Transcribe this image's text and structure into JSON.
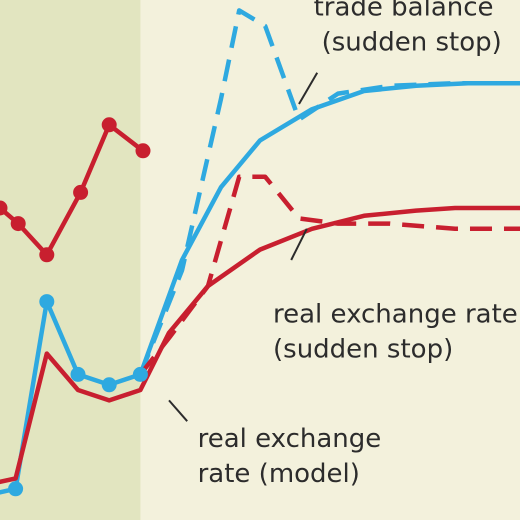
{
  "chart_data": {
    "type": "line",
    "title": "",
    "xlabel": "",
    "ylabel": "",
    "grid": false,
    "legend": "none",
    "xlim": [
      0,
      20
    ],
    "ylim": [
      0,
      100
    ],
    "shaded_region": {
      "x_from": 0,
      "x_to": 5.4,
      "color": "#e2e5c0"
    },
    "colors": {
      "blue": "#2ea9e0",
      "red": "#c81f2f",
      "background": "#f3f1dc",
      "annotation_text": "#2c2c2c",
      "leader_line": "#2c2c2c"
    },
    "series": [
      {
        "color": "#c81f2f",
        "style": "solid",
        "markers": true,
        "points": [
          [
            0,
            60
          ],
          [
            0.7,
            57
          ],
          [
            1.8,
            51
          ],
          [
            3.1,
            63
          ],
          [
            4.2,
            76
          ],
          [
            5.5,
            71
          ]
        ]
      },
      {
        "color": "#2ea9e0",
        "style": "solid",
        "markers": true,
        "points": [
          [
            -0.3,
            5
          ],
          [
            0.6,
            6
          ],
          [
            1.8,
            42
          ],
          [
            3.0,
            28
          ],
          [
            4.2,
            26
          ],
          [
            5.4,
            28
          ]
        ]
      },
      {
        "color": "#c81f2f",
        "style": "solid",
        "markers": false,
        "points": [
          [
            -0.3,
            7
          ],
          [
            0.6,
            8
          ],
          [
            1.8,
            32
          ],
          [
            3.0,
            25
          ],
          [
            4.2,
            23
          ],
          [
            5.4,
            25
          ],
          [
            6.5,
            36
          ],
          [
            8.0,
            45
          ],
          [
            10.0,
            52
          ],
          [
            12.0,
            56
          ],
          [
            14.0,
            58.5
          ],
          [
            16.0,
            59.5
          ],
          [
            17.5,
            60
          ],
          [
            20.0,
            60
          ]
        ]
      },
      {
        "color": "#2ea9e0",
        "style": "solid",
        "markers": false,
        "points": [
          [
            5.4,
            28
          ],
          [
            7.0,
            50
          ],
          [
            8.5,
            64
          ],
          [
            10.0,
            73
          ],
          [
            12.0,
            79
          ],
          [
            14.0,
            82.5
          ],
          [
            16.0,
            83.5
          ],
          [
            18.0,
            84
          ],
          [
            20.0,
            84
          ]
        ]
      },
      {
        "color": "#2ea9e0",
        "style": "dashed",
        "markers": false,
        "points": [
          [
            5.4,
            28
          ],
          [
            7.0,
            48
          ],
          [
            8.5,
            81
          ],
          [
            9.2,
            98
          ],
          [
            10.2,
            95
          ],
          [
            11.5,
            77
          ],
          [
            13.0,
            82
          ],
          [
            15.0,
            83.5
          ],
          [
            17.5,
            84
          ],
          [
            20.0,
            84
          ]
        ]
      },
      {
        "color": "#c81f2f",
        "style": "dashed",
        "markers": false,
        "points": [
          [
            5.4,
            28
          ],
          [
            6.5,
            35
          ],
          [
            8.0,
            45
          ],
          [
            9.2,
            66
          ],
          [
            10.2,
            66
          ],
          [
            11.5,
            58
          ],
          [
            13.0,
            57
          ],
          [
            15.0,
            57
          ],
          [
            17.5,
            56
          ],
          [
            20.0,
            56
          ]
        ]
      }
    ],
    "annotations": [
      {
        "lines": [
          "trade balance",
          "(sudden stop)"
        ],
        "text_x": 19.3,
        "text_y": 97,
        "anchor": "end",
        "leader_from": [
          12.2,
          86
        ],
        "leader_to": [
          11.5,
          80
        ]
      },
      {
        "lines": [
          "real exchange rate",
          "(sudden stop)"
        ],
        "text_x": 10.5,
        "text_y": 38,
        "anchor": "start",
        "leader_from": [
          11.2,
          50
        ],
        "leader_to": [
          11.8,
          56
        ]
      },
      {
        "lines": [
          "real exchange",
          "rate (model)"
        ],
        "text_x": 7.6,
        "text_y": 14,
        "anchor": "start",
        "leader_from": [
          7.2,
          19
        ],
        "leader_to": [
          6.5,
          23
        ]
      }
    ],
    "annotation_texts": [
      "trade balance",
      "(sudden stop)",
      "real exchange rate",
      "(sudden stop)",
      "real exchange",
      "rate (model)"
    ]
  }
}
